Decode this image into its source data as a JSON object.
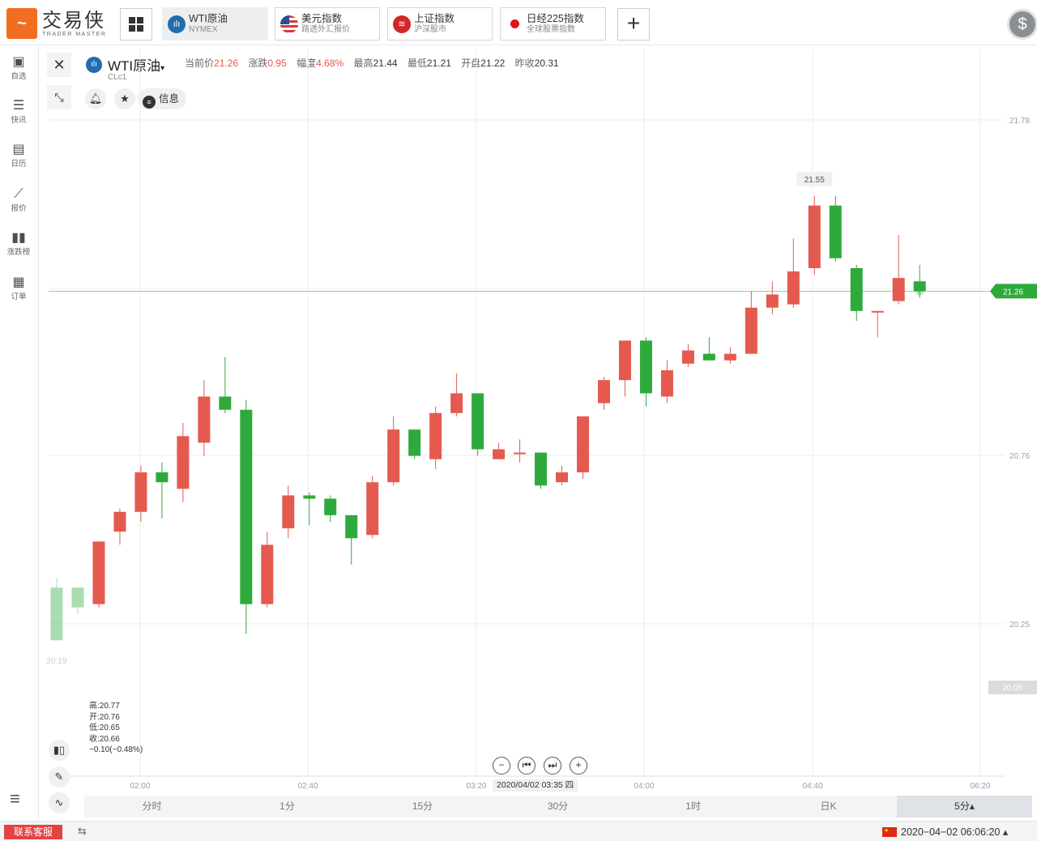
{
  "app": {
    "logo_cn": "交易侠",
    "logo_en": "TRADER MASTER"
  },
  "tabs": [
    {
      "title": "WTI原油",
      "subtitle": "NYMEX",
      "icon": "bar-chart-icon",
      "active": true
    },
    {
      "title": "美元指数",
      "subtitle": "路透外汇报价",
      "icon": "us-flag-icon",
      "active": false
    },
    {
      "title": "上证指数",
      "subtitle": "沪深股市",
      "icon": "sse-logo-icon",
      "active": false
    },
    {
      "title": "日经225指数",
      "subtitle": "全球股票指数",
      "icon": "japan-flag-icon",
      "active": false
    }
  ],
  "sidebar": {
    "items": [
      {
        "label": "自选",
        "icon": "bookmark-plus-icon"
      },
      {
        "label": "快讯",
        "icon": "news-list-icon"
      },
      {
        "label": "日历",
        "icon": "calendar-icon"
      },
      {
        "label": "报价",
        "icon": "line-chart-icon"
      },
      {
        "label": "涨跌榜",
        "icon": "bar-ranking-icon"
      },
      {
        "label": "订单",
        "icon": "clipboard-icon"
      }
    ]
  },
  "symbol": {
    "name": "WTI原油",
    "code": "CLc1",
    "quote": [
      {
        "label": "当前价",
        "value": "21.26",
        "color": "up"
      },
      {
        "label": "涨跌",
        "value": "0.95",
        "color": "up"
      },
      {
        "label": "幅度",
        "value": "4.68%",
        "color": "up"
      },
      {
        "label": "最高",
        "value": "21.44",
        "color": "dark"
      },
      {
        "label": "最低",
        "value": "21.21",
        "color": "dark"
      },
      {
        "label": "开盘",
        "value": "21.22",
        "color": "dark"
      },
      {
        "label": "昨收",
        "value": "20.31",
        "color": "dark"
      }
    ],
    "info_label": "信息"
  },
  "ohlc_box": {
    "high": "高:20.77",
    "open": "开:20.76",
    "low": "低:20.65",
    "close": "收:20.66",
    "change": "−0.10(−0.48%)"
  },
  "crosshair_time": "2020/04/02 03:35 四",
  "periods": [
    "分时",
    "1分",
    "15分",
    "30分",
    "1时",
    "日K",
    "5分▴"
  ],
  "active_period": "5分▴",
  "footer": {
    "contact": "联系客服",
    "clock": "2020−04−02 06:06:20 ▴"
  },
  "colors": {
    "up": "#e45a4f",
    "down": "#2eaa3c",
    "current_price_line": "#2eaa3c",
    "accent": "#f36d21"
  },
  "chart_data": {
    "type": "candlestick",
    "title": "",
    "y_ticks": [
      "21.78",
      "20.76",
      "20.25"
    ],
    "y_gray_label": "20.05",
    "current_price_label": "21.26",
    "peak_label": "21.55",
    "low_label": "20.19",
    "x_ticks": [
      "02:00",
      "02:40",
      "03:20",
      "04:00",
      "04:40",
      "06:20"
    ],
    "ylim": [
      19.95,
      21.85
    ],
    "current_price": 21.26,
    "candles": [
      {
        "t": 0,
        "o": 20.36,
        "c": 20.2,
        "h": 20.39,
        "l": 20.2,
        "faded": true
      },
      {
        "t": 1,
        "o": 20.36,
        "c": 20.3,
        "h": 20.36,
        "l": 20.28,
        "faded": true
      },
      {
        "t": 2,
        "o": 20.31,
        "c": 20.5,
        "h": 20.5,
        "l": 20.3
      },
      {
        "t": 3,
        "o": 20.53,
        "c": 20.59,
        "h": 20.6,
        "l": 20.49
      },
      {
        "t": 4,
        "o": 20.59,
        "c": 20.71,
        "h": 20.73,
        "l": 20.56
      },
      {
        "t": 5,
        "o": 20.71,
        "c": 20.68,
        "h": 20.74,
        "l": 20.57
      },
      {
        "t": 6,
        "o": 20.66,
        "c": 20.82,
        "h": 20.86,
        "l": 20.62
      },
      {
        "t": 7,
        "o": 20.8,
        "c": 20.94,
        "h": 20.99,
        "l": 20.76
      },
      {
        "t": 8,
        "o": 20.94,
        "c": 20.9,
        "h": 21.06,
        "l": 20.89
      },
      {
        "t": 9,
        "o": 20.9,
        "c": 20.31,
        "h": 20.93,
        "l": 20.22
      },
      {
        "t": 10,
        "o": 20.31,
        "c": 20.49,
        "h": 20.53,
        "l": 20.3
      },
      {
        "t": 11,
        "o": 20.54,
        "c": 20.64,
        "h": 20.67,
        "l": 20.51
      },
      {
        "t": 12,
        "o": 20.64,
        "c": 20.63,
        "h": 20.65,
        "l": 20.55
      },
      {
        "t": 13,
        "o": 20.63,
        "c": 20.58,
        "h": 20.64,
        "l": 20.56
      },
      {
        "t": 14,
        "o": 20.58,
        "c": 20.51,
        "h": 20.58,
        "l": 20.43
      },
      {
        "t": 15,
        "o": 20.52,
        "c": 20.68,
        "h": 20.7,
        "l": 20.51
      },
      {
        "t": 16,
        "o": 20.68,
        "c": 20.84,
        "h": 20.88,
        "l": 20.67
      },
      {
        "t": 17,
        "o": 20.84,
        "c": 20.76,
        "h": 20.84,
        "l": 20.75
      },
      {
        "t": 18,
        "o": 20.75,
        "c": 20.89,
        "h": 20.91,
        "l": 20.72
      },
      {
        "t": 19,
        "o": 20.89,
        "c": 20.95,
        "h": 21.01,
        "l": 20.88
      },
      {
        "t": 20,
        "o": 20.95,
        "c": 20.78,
        "h": 20.95,
        "l": 20.76
      },
      {
        "t": 21,
        "o": 20.75,
        "c": 20.78,
        "h": 20.8,
        "l": 20.75
      },
      {
        "t": 22,
        "o": 20.77,
        "c": 20.77,
        "h": 20.81,
        "l": 20.74
      },
      {
        "t": 23,
        "o": 20.77,
        "c": 20.67,
        "h": 20.77,
        "l": 20.66
      },
      {
        "t": 24,
        "o": 20.68,
        "c": 20.71,
        "h": 20.73,
        "l": 20.67
      },
      {
        "t": 25,
        "o": 20.71,
        "c": 20.88,
        "h": 20.88,
        "l": 20.69
      },
      {
        "t": 26,
        "o": 20.92,
        "c": 20.99,
        "h": 21.0,
        "l": 20.9
      },
      {
        "t": 27,
        "o": 20.99,
        "c": 21.11,
        "h": 21.11,
        "l": 20.94
      },
      {
        "t": 28,
        "o": 21.11,
        "c": 20.95,
        "h": 21.12,
        "l": 20.91
      },
      {
        "t": 29,
        "o": 20.94,
        "c": 21.02,
        "h": 21.05,
        "l": 20.92
      },
      {
        "t": 30,
        "o": 21.04,
        "c": 21.08,
        "h": 21.1,
        "l": 21.03
      },
      {
        "t": 31,
        "o": 21.07,
        "c": 21.05,
        "h": 21.12,
        "l": 21.05
      },
      {
        "t": 32,
        "o": 21.05,
        "c": 21.07,
        "h": 21.09,
        "l": 21.04
      },
      {
        "t": 33,
        "o": 21.07,
        "c": 21.21,
        "h": 21.26,
        "l": 21.07
      },
      {
        "t": 34,
        "o": 21.21,
        "c": 21.25,
        "h": 21.29,
        "l": 21.19
      },
      {
        "t": 35,
        "o": 21.22,
        "c": 21.32,
        "h": 21.42,
        "l": 21.21
      },
      {
        "t": 36,
        "o": 21.33,
        "c": 21.52,
        "h": 21.55,
        "l": 21.31
      },
      {
        "t": 37,
        "o": 21.52,
        "c": 21.36,
        "h": 21.55,
        "l": 21.35
      },
      {
        "t": 38,
        "o": 21.33,
        "c": 21.2,
        "h": 21.34,
        "l": 21.17
      },
      {
        "t": 39,
        "o": 21.2,
        "c": 21.2,
        "h": 21.2,
        "l": 21.12
      },
      {
        "t": 40,
        "o": 21.23,
        "c": 21.3,
        "h": 21.43,
        "l": 21.22
      },
      {
        "t": 41,
        "o": 21.29,
        "c": 21.26,
        "h": 21.34,
        "l": 21.24
      }
    ]
  }
}
